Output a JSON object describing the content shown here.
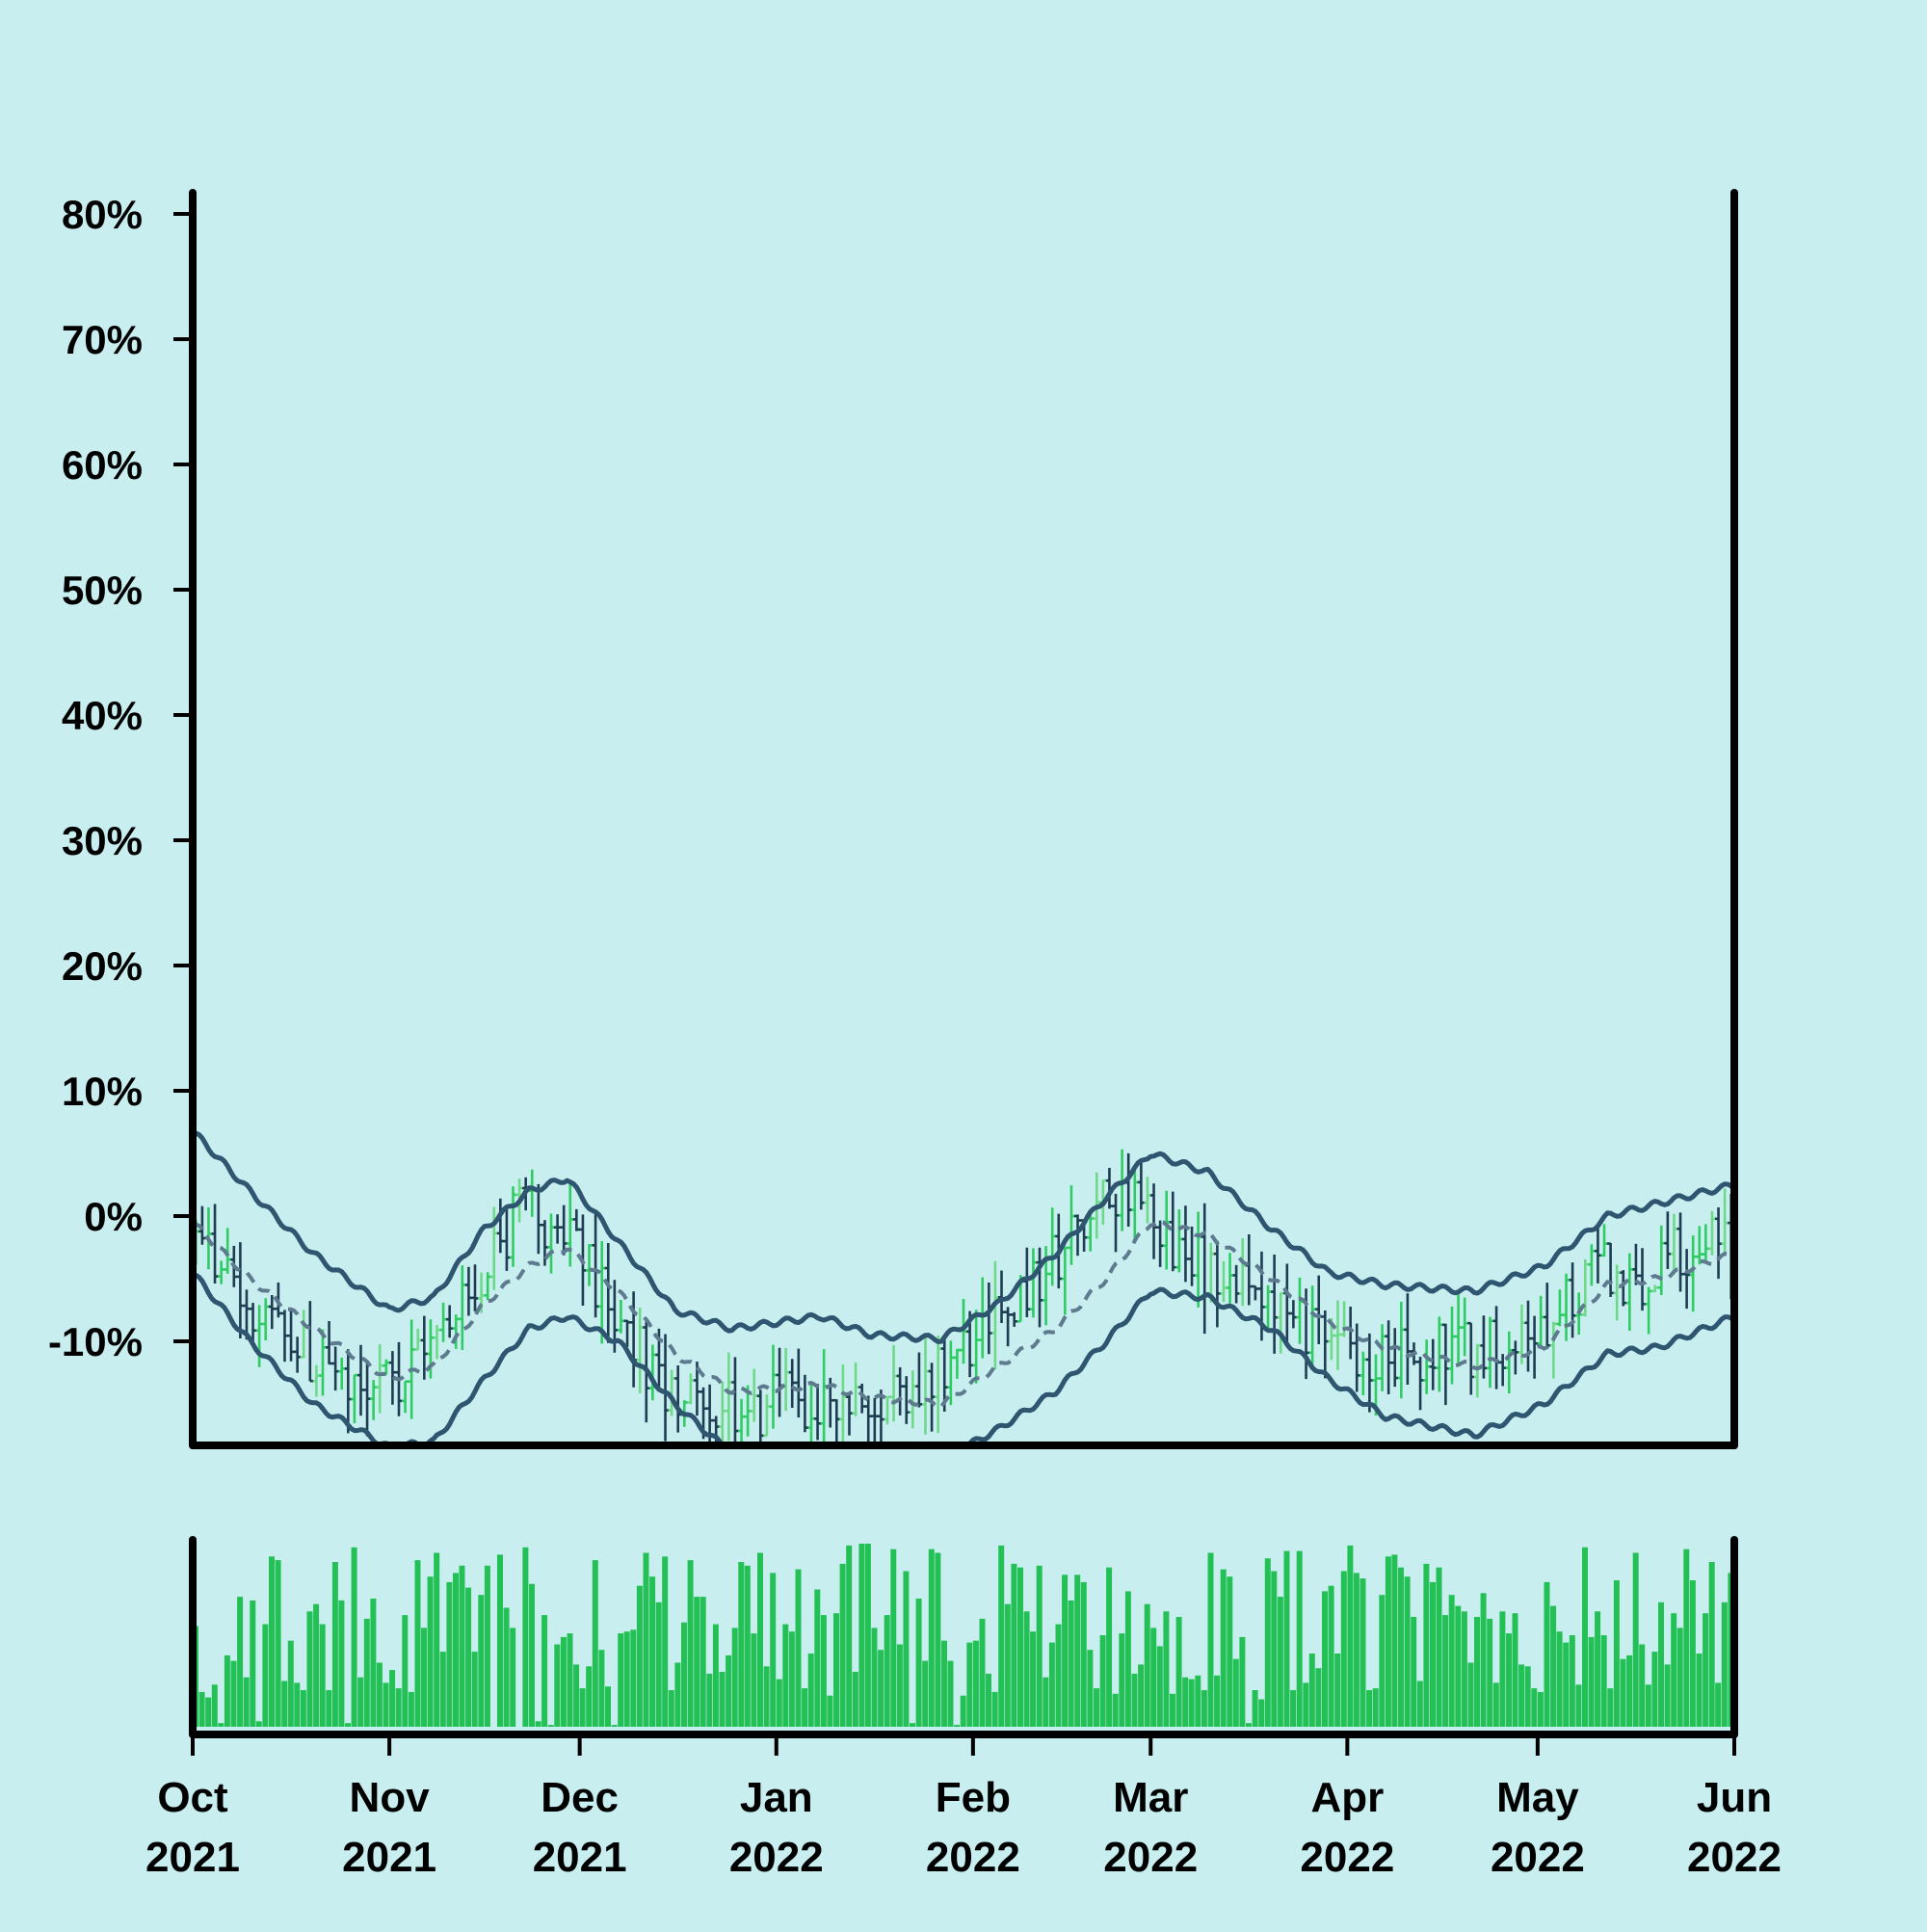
{
  "chart_data": [
    {
      "type": "ohlc",
      "title": "",
      "xlabel": "",
      "ylabel": "",
      "x_range": [
        "2021-10-01",
        "2022-06-01"
      ],
      "ylim": [
        -18,
        82
      ],
      "y_ticks": [
        -10,
        0,
        10,
        20,
        30,
        40,
        50,
        60,
        70,
        80
      ],
      "y_tick_labels": [
        "-10%",
        "0%",
        "10%",
        "20%",
        "30%",
        "40%",
        "50%",
        "60%",
        "70%",
        "80%"
      ],
      "grid": false,
      "legend": "none",
      "colors": {
        "up": "#2ecc63",
        "up_light": "#6fd98a",
        "down": "#1e3d52",
        "bands": "#2e5670",
        "middle": "#5d7a8e",
        "background": "#c9eeef"
      },
      "close_anchors": [
        [
          "2021-10-01",
          -2
        ],
        [
          "2021-10-07",
          -6
        ],
        [
          "2021-10-15",
          -10
        ],
        [
          "2021-10-24",
          -13
        ],
        [
          "2021-11-01",
          -14
        ],
        [
          "2021-11-08",
          -10
        ],
        [
          "2021-11-16",
          -3
        ],
        [
          "2021-11-23",
          1
        ],
        [
          "2021-11-30",
          -3
        ],
        [
          "2021-12-07",
          -9
        ],
        [
          "2021-12-14",
          -14
        ],
        [
          "2021-12-21",
          -16
        ],
        [
          "2022-01-01",
          -15
        ],
        [
          "2022-01-10",
          -14
        ],
        [
          "2022-01-18",
          -14
        ],
        [
          "2022-01-26",
          -12
        ],
        [
          "2022-02-03",
          -9
        ],
        [
          "2022-02-10",
          -6
        ],
        [
          "2022-02-18",
          0
        ],
        [
          "2022-02-26",
          3
        ],
        [
          "2022-03-03",
          -2
        ],
        [
          "2022-03-12",
          -5
        ],
        [
          "2022-03-20",
          -8
        ],
        [
          "2022-03-27",
          -10
        ],
        [
          "2022-04-05",
          -11
        ],
        [
          "2022-04-14",
          -11
        ],
        [
          "2022-04-24",
          -10
        ],
        [
          "2022-05-02",
          -8
        ],
        [
          "2022-05-10",
          -4
        ],
        [
          "2022-05-18",
          -5
        ],
        [
          "2022-05-25",
          -2
        ],
        [
          "2022-06-01",
          -2
        ]
      ],
      "upper_band": [
        [
          "2021-10-01",
          6.8
        ],
        [
          "2021-10-10",
          2
        ],
        [
          "2021-10-20",
          -3
        ],
        [
          "2021-11-01",
          -7.5
        ],
        [
          "2021-11-08",
          -6.5
        ],
        [
          "2021-11-16",
          -1
        ],
        [
          "2021-11-23",
          2
        ],
        [
          "2021-11-29",
          3
        ],
        [
          "2021-12-07",
          -2
        ],
        [
          "2021-12-16",
          -7.5
        ],
        [
          "2021-12-25",
          -9
        ],
        [
          "2022-01-08",
          -8
        ],
        [
          "2022-01-16",
          -9.5
        ],
        [
          "2022-01-27",
          -9.8
        ],
        [
          "2022-02-05",
          -7
        ],
        [
          "2022-02-14",
          -3
        ],
        [
          "2022-02-22",
          1.5
        ],
        [
          "2022-03-01",
          5
        ],
        [
          "2022-03-10",
          3.5
        ],
        [
          "2022-03-20",
          -1
        ],
        [
          "2022-03-29",
          -4.5
        ],
        [
          "2022-04-07",
          -5.5
        ],
        [
          "2022-04-21",
          -6
        ],
        [
          "2022-05-02",
          -4
        ],
        [
          "2022-05-12",
          0
        ],
        [
          "2022-05-20",
          1
        ],
        [
          "2022-06-01",
          2.5
        ]
      ],
      "middle_band": [
        [
          "2021-10-01",
          -0.5
        ],
        [
          "2021-10-10",
          -5
        ],
        [
          "2021-10-20",
          -9
        ],
        [
          "2021-11-01",
          -13
        ],
        [
          "2021-11-08",
          -12
        ],
        [
          "2021-11-16",
          -7
        ],
        [
          "2021-11-23",
          -4
        ],
        [
          "2021-11-29",
          -2.5
        ],
        [
          "2021-12-07",
          -6
        ],
        [
          "2021-12-16",
          -11
        ],
        [
          "2021-12-25",
          -14
        ],
        [
          "2022-01-08",
          -13.5
        ],
        [
          "2022-01-16",
          -14.5
        ],
        [
          "2022-01-27",
          -15
        ],
        [
          "2022-02-05",
          -12
        ],
        [
          "2022-02-14",
          -9
        ],
        [
          "2022-02-22",
          -5
        ],
        [
          "2022-03-01",
          -0.5
        ],
        [
          "2022-03-10",
          -1.5
        ],
        [
          "2022-03-20",
          -5
        ],
        [
          "2022-03-29",
          -8.5
        ],
        [
          "2022-04-07",
          -10.5
        ],
        [
          "2022-04-21",
          -12
        ],
        [
          "2022-05-02",
          -10.5
        ],
        [
          "2022-05-12",
          -5.5
        ],
        [
          "2022-05-20",
          -5
        ],
        [
          "2022-06-01",
          -3
        ]
      ],
      "lower_band": [
        [
          "2021-10-01",
          -4.5
        ],
        [
          "2021-10-10",
          -10
        ],
        [
          "2021-10-20",
          -15
        ],
        [
          "2021-11-01",
          -18.5
        ],
        [
          "2021-11-08",
          -18
        ],
        [
          "2021-11-16",
          -13
        ],
        [
          "2021-11-23",
          -9
        ],
        [
          "2021-11-29",
          -8
        ],
        [
          "2021-12-07",
          -10
        ],
        [
          "2021-12-16",
          -15
        ],
        [
          "2021-12-25",
          -19
        ],
        [
          "2022-01-08",
          -19
        ],
        [
          "2022-01-16",
          -19.5
        ],
        [
          "2022-01-27",
          -19.5
        ],
        [
          "2022-02-05",
          -17
        ],
        [
          "2022-02-14",
          -14
        ],
        [
          "2022-02-22",
          -10
        ],
        [
          "2022-03-01",
          -6
        ],
        [
          "2022-03-10",
          -6.5
        ],
        [
          "2022-03-20",
          -9
        ],
        [
          "2022-03-29",
          -13
        ],
        [
          "2022-04-07",
          -16
        ],
        [
          "2022-04-21",
          -17.5
        ],
        [
          "2022-05-02",
          -15
        ],
        [
          "2022-05-12",
          -11
        ],
        [
          "2022-05-20",
          -10.5
        ],
        [
          "2022-06-01",
          -8
        ]
      ]
    },
    {
      "type": "bar",
      "title": "",
      "series": [
        {
          "values": []
        }
      ],
      "x_ticks": [
        "2021-10-01",
        "2021-11-01",
        "2021-12-01",
        "2022-01-01",
        "2022-02-01",
        "2022-03-01",
        "2022-04-01",
        "2022-05-01",
        "2022-06-01"
      ],
      "x_tick_labels": [
        [
          "Oct",
          "2021"
        ],
        [
          "Nov",
          "2021"
        ],
        [
          "Dec",
          "2021"
        ],
        [
          "Jan",
          "2022"
        ],
        [
          "Feb",
          "2022"
        ],
        [
          "Mar",
          "2022"
        ],
        [
          "Apr",
          "2022"
        ],
        [
          "May",
          "2022"
        ],
        [
          "Jun",
          "2022"
        ]
      ],
      "grid": false,
      "color": "#22c055"
    }
  ]
}
